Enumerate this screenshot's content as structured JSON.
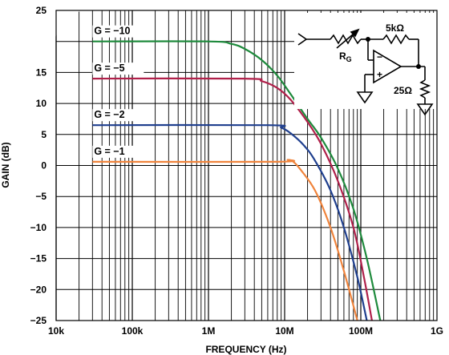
{
  "chart_data": {
    "type": "line",
    "title": "",
    "xlabel": "FREQUENCY (Hz)",
    "ylabel": "GAIN (dB)",
    "xscale": "log",
    "xlim": [
      10000,
      1000000000
    ],
    "ylim": [
      -25,
      25
    ],
    "x_tick_labels": [
      "10k",
      "100k",
      "1M",
      "10M",
      "100M",
      "1G"
    ],
    "y_tick_labels": [
      "25",
      "20",
      "15",
      "10",
      "5",
      "0",
      "−5",
      "−10",
      "−15",
      "−20",
      "−25"
    ],
    "grid": true,
    "series": [
      {
        "name": "G = −10",
        "color": "#1e8a3c",
        "points": [
          [
            30000,
            20
          ],
          [
            1000000,
            20
          ],
          [
            2000000,
            19.6
          ],
          [
            3000000,
            18.8
          ],
          [
            5000000,
            17.0
          ],
          [
            8000000,
            14.5
          ],
          [
            12000000,
            11.5
          ],
          [
            20000000,
            7.5
          ],
          [
            30000000,
            4.5
          ],
          [
            50000000,
            -0.5
          ],
          [
            80000000,
            -7
          ],
          [
            120000000,
            -15
          ],
          [
            180000000,
            -25
          ]
        ]
      },
      {
        "name": "G = −5",
        "color": "#b0204a",
        "points": [
          [
            30000,
            14
          ],
          [
            3000000,
            14
          ],
          [
            5000000,
            13.6
          ],
          [
            8000000,
            12.5
          ],
          [
            12000000,
            10.6
          ],
          [
            20000000,
            7.0
          ],
          [
            30000000,
            3.5
          ],
          [
            50000000,
            -2.5
          ],
          [
            80000000,
            -10
          ],
          [
            110000000,
            -18
          ],
          [
            140000000,
            -25
          ]
        ]
      },
      {
        "name": "G = −2",
        "color": "#1f3f8e",
        "points": [
          [
            30000,
            6.5
          ],
          [
            6000000,
            6.5
          ],
          [
            9000000,
            6.1
          ],
          [
            12000000,
            5.2
          ],
          [
            18000000,
            3.2
          ],
          [
            25000000,
            0.8
          ],
          [
            40000000,
            -4
          ],
          [
            60000000,
            -10
          ],
          [
            90000000,
            -18
          ],
          [
            120000000,
            -25
          ]
        ]
      },
      {
        "name": "G = −1",
        "color": "#f0843c",
        "points": [
          [
            30000,
            0.6
          ],
          [
            8000000,
            0.6
          ],
          [
            11000000,
            0.9
          ],
          [
            13000000,
            0.6
          ],
          [
            16000000,
            -0.6
          ],
          [
            25000000,
            -4
          ],
          [
            40000000,
            -10
          ],
          [
            60000000,
            -17
          ],
          [
            90000000,
            -25
          ]
        ]
      }
    ],
    "annotations": {
      "resistor_feedback": "5kΩ",
      "resistor_gain": "R",
      "resistor_gain_subscript": "G",
      "resistor_load": "25Ω",
      "opamp_minus": "−",
      "opamp_plus": "+"
    }
  }
}
